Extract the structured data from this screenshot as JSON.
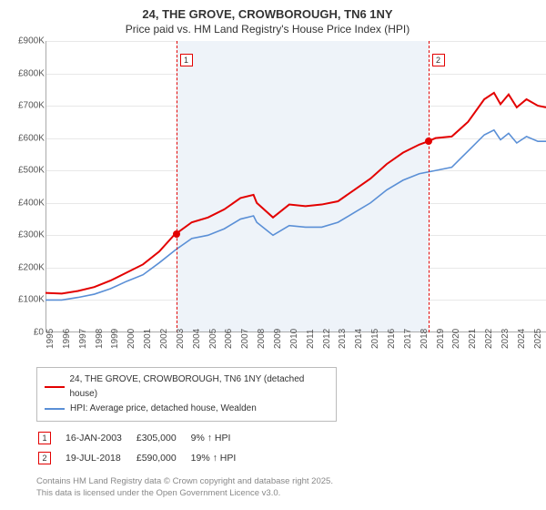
{
  "title": "24, THE GROVE, CROWBOROUGH, TN6 1NY",
  "subtitle": "Price paid vs. HM Land Registry's House Price Index (HPI)",
  "chart": {
    "type": "line",
    "ylim": [
      0,
      900000
    ],
    "ytick_step": 100000,
    "yticks": [
      "£0",
      "£100K",
      "£200K",
      "£300K",
      "£400K",
      "£500K",
      "£600K",
      "£700K",
      "£800K",
      "£900K"
    ],
    "xlim": [
      1995,
      2025.8
    ],
    "xticks": [
      1995,
      1996,
      1997,
      1998,
      1999,
      2000,
      2001,
      2002,
      2003,
      2004,
      2005,
      2006,
      2007,
      2008,
      2009,
      2010,
      2011,
      2012,
      2013,
      2014,
      2015,
      2016,
      2017,
      2018,
      2019,
      2020,
      2021,
      2022,
      2023,
      2024,
      2025
    ],
    "band_start": 2003.04,
    "band_end": 2018.55,
    "band_color": "#eef3f9",
    "background_color": "#ffffff",
    "grid_color": "#e8e8e8",
    "axis_color": "#aaaaaa",
    "series": [
      {
        "name": "property",
        "label": "24, THE GROVE, CROWBOROUGH, TN6 1NY (detached house)",
        "color": "#e30000",
        "width": 2,
        "data": [
          [
            1995,
            122000
          ],
          [
            1996,
            120000
          ],
          [
            1997,
            128000
          ],
          [
            1998,
            140000
          ],
          [
            1999,
            160000
          ],
          [
            2000,
            185000
          ],
          [
            2001,
            210000
          ],
          [
            2002,
            250000
          ],
          [
            2002.9,
            300000
          ],
          [
            2003.04,
            305000
          ],
          [
            2004,
            340000
          ],
          [
            2005,
            355000
          ],
          [
            2006,
            380000
          ],
          [
            2007,
            415000
          ],
          [
            2007.8,
            425000
          ],
          [
            2008,
            400000
          ],
          [
            2009,
            355000
          ],
          [
            2010,
            395000
          ],
          [
            2011,
            390000
          ],
          [
            2012,
            395000
          ],
          [
            2013,
            405000
          ],
          [
            2014,
            440000
          ],
          [
            2015,
            475000
          ],
          [
            2016,
            520000
          ],
          [
            2017,
            555000
          ],
          [
            2018,
            580000
          ],
          [
            2018.55,
            590000
          ],
          [
            2019,
            600000
          ],
          [
            2020,
            605000
          ],
          [
            2021,
            650000
          ],
          [
            2022,
            720000
          ],
          [
            2022.6,
            740000
          ],
          [
            2023,
            705000
          ],
          [
            2023.5,
            735000
          ],
          [
            2024,
            695000
          ],
          [
            2024.6,
            720000
          ],
          [
            2025.3,
            700000
          ],
          [
            2025.8,
            695000
          ]
        ]
      },
      {
        "name": "hpi",
        "label": "HPI: Average price, detached house, Wealden",
        "color": "#5a8fd6",
        "width": 1.6,
        "data": [
          [
            1995,
            100000
          ],
          [
            1996,
            100000
          ],
          [
            1997,
            108000
          ],
          [
            1998,
            118000
          ],
          [
            1999,
            135000
          ],
          [
            2000,
            158000
          ],
          [
            2001,
            178000
          ],
          [
            2002,
            215000
          ],
          [
            2003,
            255000
          ],
          [
            2004,
            290000
          ],
          [
            2005,
            300000
          ],
          [
            2006,
            320000
          ],
          [
            2007,
            350000
          ],
          [
            2007.8,
            360000
          ],
          [
            2008,
            340000
          ],
          [
            2009,
            300000
          ],
          [
            2010,
            330000
          ],
          [
            2011,
            325000
          ],
          [
            2012,
            325000
          ],
          [
            2013,
            340000
          ],
          [
            2014,
            370000
          ],
          [
            2015,
            400000
          ],
          [
            2016,
            440000
          ],
          [
            2017,
            470000
          ],
          [
            2018,
            490000
          ],
          [
            2019,
            500000
          ],
          [
            2020,
            510000
          ],
          [
            2021,
            560000
          ],
          [
            2022,
            610000
          ],
          [
            2022.6,
            625000
          ],
          [
            2023,
            595000
          ],
          [
            2023.5,
            615000
          ],
          [
            2024,
            585000
          ],
          [
            2024.6,
            605000
          ],
          [
            2025.3,
            590000
          ],
          [
            2025.8,
            590000
          ]
        ]
      }
    ],
    "markers": [
      {
        "n": "1",
        "x": 2003.04,
        "y": 305000,
        "color": "#e30000"
      },
      {
        "n": "2",
        "x": 2018.55,
        "y": 590000,
        "color": "#e30000"
      }
    ]
  },
  "sales": [
    {
      "n": "1",
      "date": "16-JAN-2003",
      "price": "£305,000",
      "delta": "9% ↑ HPI",
      "color": "#e30000"
    },
    {
      "n": "2",
      "date": "19-JUL-2018",
      "price": "£590,000",
      "delta": "19% ↑ HPI",
      "color": "#e30000"
    }
  ],
  "footer1": "Contains HM Land Registry data © Crown copyright and database right 2025.",
  "footer2": "This data is licensed under the Open Government Licence v3.0."
}
